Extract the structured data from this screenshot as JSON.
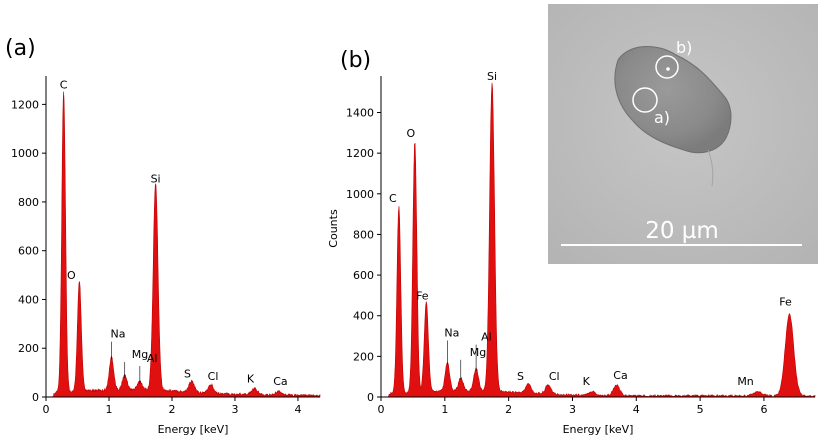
{
  "panels": {
    "a": "(a)",
    "b": "(b)"
  },
  "inset": {
    "scale_label": "20 µm",
    "spot_a": "a)",
    "spot_b": "b)"
  },
  "chart_data": [
    {
      "type": "area",
      "panel": "(a)",
      "xlabel": "Energy [keV]",
      "ylabel": "",
      "xlim": [
        0,
        4.35
      ],
      "ylim": [
        0,
        1300
      ],
      "xticks": [
        0,
        1,
        2,
        3,
        4
      ],
      "yticks": [
        0,
        200,
        400,
        600,
        800,
        1000,
        1200
      ],
      "color": "#e01010",
      "peaks": [
        {
          "label": "C",
          "x": 0.28,
          "y": 1240
        },
        {
          "label": "O",
          "x": 0.53,
          "y": 460
        },
        {
          "label": "Na",
          "x": 1.04,
          "y": 145
        },
        {
          "label": "Mg",
          "x": 1.25,
          "y": 70
        },
        {
          "label": "Al",
          "x": 1.49,
          "y": 45
        },
        {
          "label": "Si",
          "x": 1.74,
          "y": 855
        },
        {
          "label": "S",
          "x": 2.31,
          "y": 55
        },
        {
          "label": "Cl",
          "x": 2.62,
          "y": 45
        },
        {
          "label": "K",
          "x": 3.31,
          "y": 35
        },
        {
          "label": "Ca",
          "x": 3.69,
          "y": 25
        }
      ]
    },
    {
      "type": "area",
      "panel": "(b)",
      "xlabel": "Energy [keV]",
      "ylabel": "Counts",
      "xlim": [
        0,
        6.8
      ],
      "ylim": [
        0,
        1560
      ],
      "xticks": [
        0,
        1,
        2,
        3,
        4,
        5,
        6
      ],
      "yticks": [
        0,
        200,
        400,
        600,
        800,
        1000,
        1200,
        1400
      ],
      "color": "#e01010",
      "peaks": [
        {
          "label": "C",
          "x": 0.28,
          "y": 930
        },
        {
          "label": "O",
          "x": 0.53,
          "y": 1250
        },
        {
          "label": "Fe",
          "x": 0.71,
          "y": 450
        },
        {
          "label": "Na",
          "x": 1.04,
          "y": 150
        },
        {
          "label": "Mg",
          "x": 1.25,
          "y": 75
        },
        {
          "label": "Al",
          "x": 1.49,
          "y": 120
        },
        {
          "label": "Si",
          "x": 1.74,
          "y": 1530
        },
        {
          "label": "S",
          "x": 2.31,
          "y": 55
        },
        {
          "label": "Cl",
          "x": 2.62,
          "y": 55
        },
        {
          "label": "K",
          "x": 3.31,
          "y": 30
        },
        {
          "label": "Ca",
          "x": 3.69,
          "y": 60
        },
        {
          "label": "Mn",
          "x": 5.9,
          "y": 30
        },
        {
          "label": "Fe",
          "x": 6.4,
          "y": 410
        }
      ]
    }
  ]
}
